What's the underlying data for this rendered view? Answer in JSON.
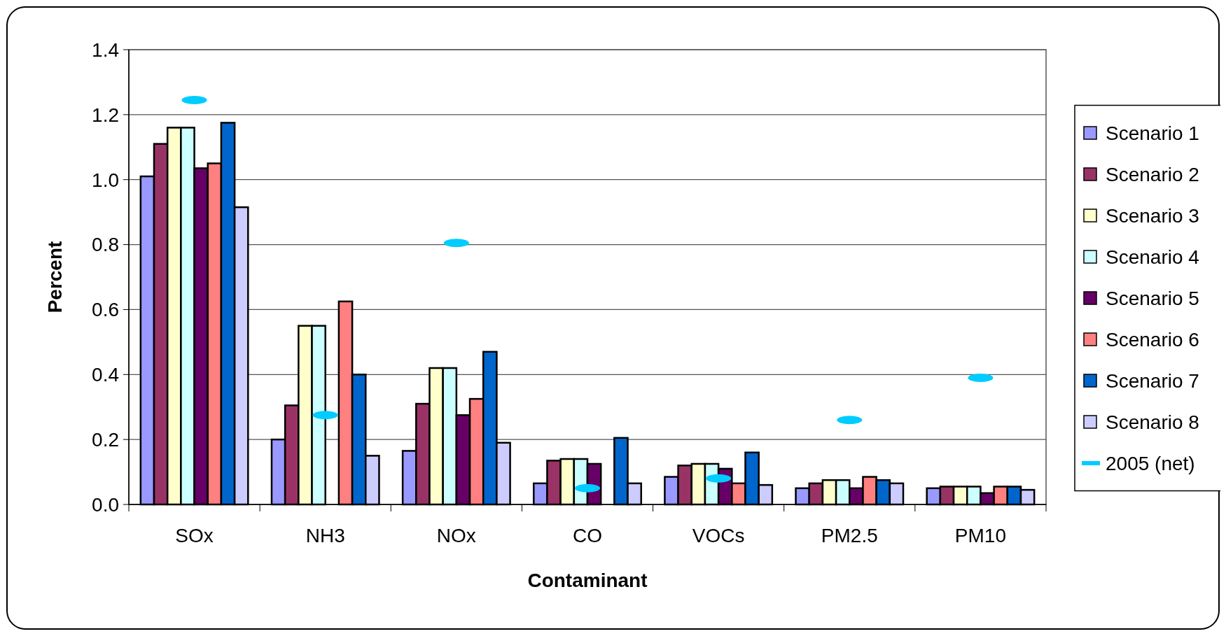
{
  "chart_data": {
    "type": "bar",
    "xlabel": "Contaminant",
    "ylabel": "Percent",
    "categories": [
      "SOx",
      "NH3",
      "NOx",
      "CO",
      "VOCs",
      "PM2.5",
      "PM10"
    ],
    "ylim": [
      0,
      1.4
    ],
    "yticks": [
      {
        "value": 0,
        "label": "0.0"
      },
      0.2,
      0.4,
      0.6,
      0.8,
      {
        "value": 1,
        "label": "1.0"
      },
      1.2,
      1.4
    ],
    "grid": "y",
    "legend": "right",
    "series": [
      {
        "name": "Scenario 1",
        "color": "#9999ff",
        "values": [
          1.01,
          0.2,
          0.165,
          0.065,
          0.085,
          0.05,
          0.05
        ]
      },
      {
        "name": "Scenario 2",
        "color": "#993366",
        "values": [
          1.11,
          0.305,
          0.31,
          0.135,
          0.12,
          0.065,
          0.055
        ]
      },
      {
        "name": "Scenario 3",
        "color": "#ffffcc",
        "values": [
          1.16,
          0.55,
          0.42,
          0.14,
          0.125,
          0.075,
          0.055
        ]
      },
      {
        "name": "Scenario 4",
        "color": "#ccffff",
        "values": [
          1.16,
          0.55,
          0.42,
          0.14,
          0.125,
          0.075,
          0.055
        ]
      },
      {
        "name": "Scenario 5",
        "color": "#660066",
        "values": [
          1.035,
          null,
          0.275,
          0.125,
          0.11,
          0.05,
          0.035
        ]
      },
      {
        "name": "Scenario 6",
        "color": "#ff8080",
        "values": [
          1.05,
          0.625,
          0.325,
          null,
          0.065,
          0.085,
          0.055
        ]
      },
      {
        "name": "Scenario 7",
        "color": "#0066cc",
        "values": [
          1.175,
          0.4,
          0.47,
          0.205,
          0.16,
          0.075,
          0.055
        ]
      },
      {
        "name": "Scenario 8",
        "color": "#ccccff",
        "values": [
          0.915,
          0.15,
          0.19,
          0.065,
          0.06,
          0.065,
          0.045
        ]
      },
      {
        "name": "2005 (net)",
        "color": "#00ccff",
        "type": "scatter",
        "values": [
          1.245,
          0.275,
          0.805,
          0.05,
          0.08,
          0.26,
          0.39
        ]
      }
    ]
  }
}
